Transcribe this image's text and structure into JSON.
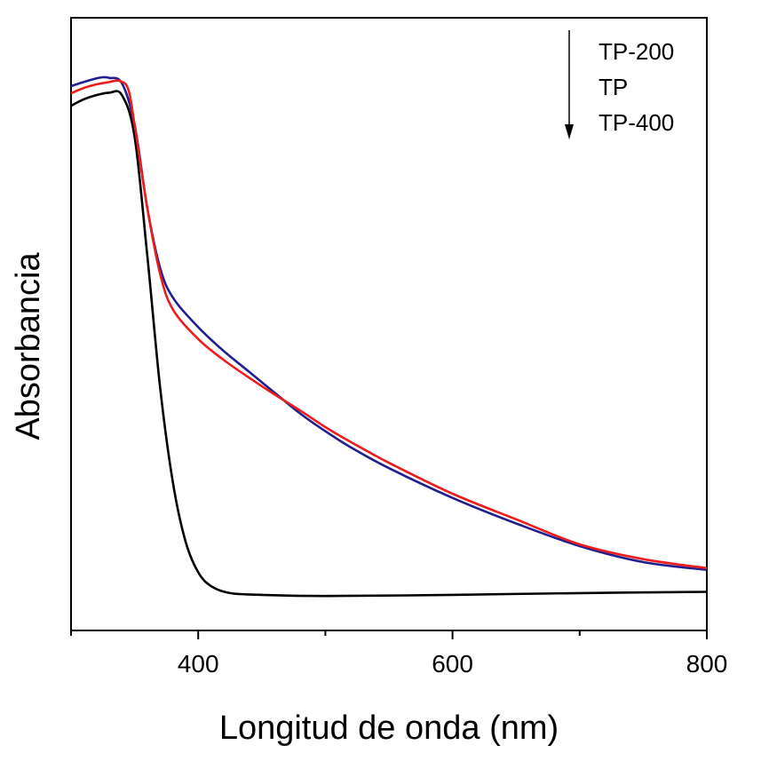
{
  "chart_data": {
    "type": "line",
    "xlabel": "Longitud de onda (nm)",
    "ylabel": "Absorbancia",
    "xlim": [
      300,
      800
    ],
    "ylim": [
      0,
      1
    ],
    "x_ticks": [
      400,
      600,
      800
    ],
    "x_minor_ticks": [
      300,
      500,
      700
    ],
    "y_ticks_shown": false,
    "grid": false,
    "legend": {
      "position": "top-right",
      "entries": [
        "TP-200",
        "TP",
        "TP-400"
      ],
      "arrow": "down"
    },
    "colors": {
      "TP-200": "#1f1f8f",
      "TP": "#ee1c1c",
      "TP-400": "#000000"
    },
    "series": [
      {
        "name": "TP-200",
        "color": "#1f1f8f",
        "points": [
          [
            300,
            0.885
          ],
          [
            310,
            0.892
          ],
          [
            320,
            0.898
          ],
          [
            325,
            0.9
          ],
          [
            330,
            0.899
          ],
          [
            340,
            0.89
          ],
          [
            350,
            0.82
          ],
          [
            360,
            0.68
          ],
          [
            370,
            0.58
          ],
          [
            380,
            0.53
          ],
          [
            400,
            0.48
          ],
          [
            420,
            0.44
          ],
          [
            440,
            0.405
          ],
          [
            460,
            0.37
          ],
          [
            480,
            0.335
          ],
          [
            500,
            0.305
          ],
          [
            520,
            0.278
          ],
          [
            550,
            0.243
          ],
          [
            600,
            0.193
          ],
          [
            650,
            0.15
          ],
          [
            700,
            0.112
          ],
          [
            750,
            0.085
          ],
          [
            800,
            0.072
          ]
        ]
      },
      {
        "name": "TP",
        "color": "#ee1c1c",
        "points": [
          [
            300,
            0.873
          ],
          [
            310,
            0.882
          ],
          [
            320,
            0.888
          ],
          [
            330,
            0.892
          ],
          [
            338,
            0.894
          ],
          [
            345,
            0.88
          ],
          [
            350,
            0.82
          ],
          [
            360,
            0.68
          ],
          [
            370,
            0.57
          ],
          [
            380,
            0.51
          ],
          [
            400,
            0.46
          ],
          [
            420,
            0.425
          ],
          [
            440,
            0.395
          ],
          [
            460,
            0.367
          ],
          [
            480,
            0.34
          ],
          [
            500,
            0.312
          ],
          [
            520,
            0.287
          ],
          [
            550,
            0.252
          ],
          [
            600,
            0.2
          ],
          [
            650,
            0.157
          ],
          [
            700,
            0.115
          ],
          [
            750,
            0.09
          ],
          [
            800,
            0.075
          ]
        ]
      },
      {
        "name": "TP-400",
        "color": "#000000",
        "points": [
          [
            300,
            0.852
          ],
          [
            310,
            0.863
          ],
          [
            320,
            0.87
          ],
          [
            330,
            0.874
          ],
          [
            340,
            0.87
          ],
          [
            350,
            0.8
          ],
          [
            360,
            0.6
          ],
          [
            370,
            0.38
          ],
          [
            380,
            0.22
          ],
          [
            390,
            0.12
          ],
          [
            400,
            0.068
          ],
          [
            410,
            0.045
          ],
          [
            425,
            0.033
          ],
          [
            450,
            0.03
          ],
          [
            500,
            0.028
          ],
          [
            600,
            0.03
          ],
          [
            700,
            0.033
          ],
          [
            800,
            0.035
          ]
        ]
      }
    ]
  }
}
